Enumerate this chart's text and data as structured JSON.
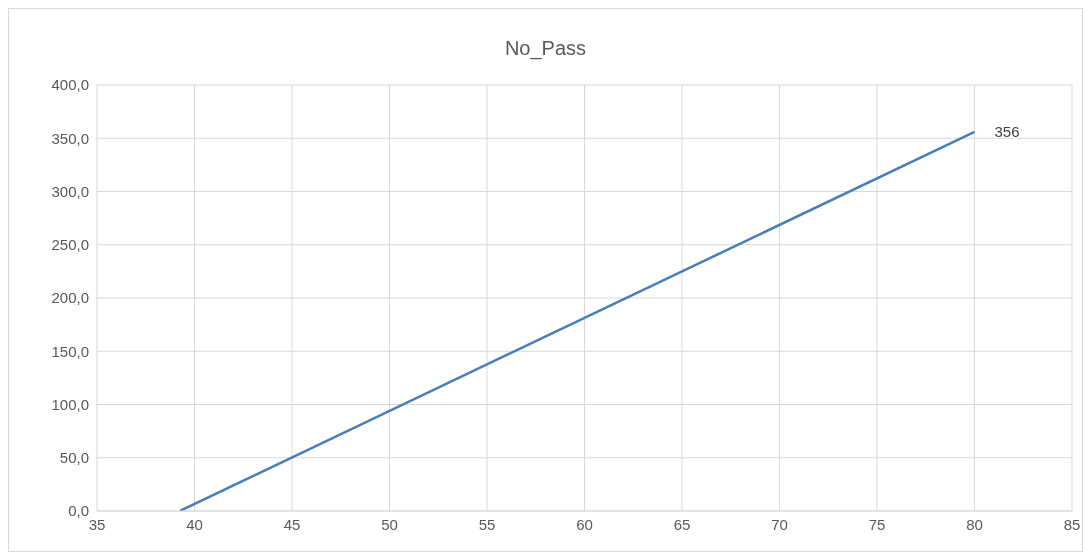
{
  "chart_data": {
    "type": "line",
    "title": "No_Pass",
    "x": [
      39.25,
      80
    ],
    "series": [
      {
        "color": "#4a7ebb",
        "values": [
          0,
          356
        ]
      }
    ],
    "xlim": [
      35,
      85
    ],
    "xticks": [
      35,
      40,
      45,
      50,
      55,
      60,
      65,
      70,
      75,
      80,
      85
    ],
    "ylim": [
      0,
      400
    ],
    "yticks": [
      {
        "value": 0,
        "label": "0,0"
      },
      {
        "value": 50,
        "label": "50,0"
      },
      {
        "value": 100,
        "label": "100,0"
      },
      {
        "value": 150,
        "label": "150,0"
      },
      {
        "value": 200,
        "label": "200,0"
      },
      {
        "value": 250,
        "label": "250,0"
      },
      {
        "value": 300,
        "label": "300,0"
      },
      {
        "value": 350,
        "label": "350,0"
      },
      {
        "value": 400,
        "label": "400,0"
      }
    ],
    "grid": true,
    "marker": "none",
    "line_style": "solid",
    "legend": false,
    "annotations": [
      {
        "text": "356",
        "x": 80,
        "y": 356
      }
    ]
  }
}
